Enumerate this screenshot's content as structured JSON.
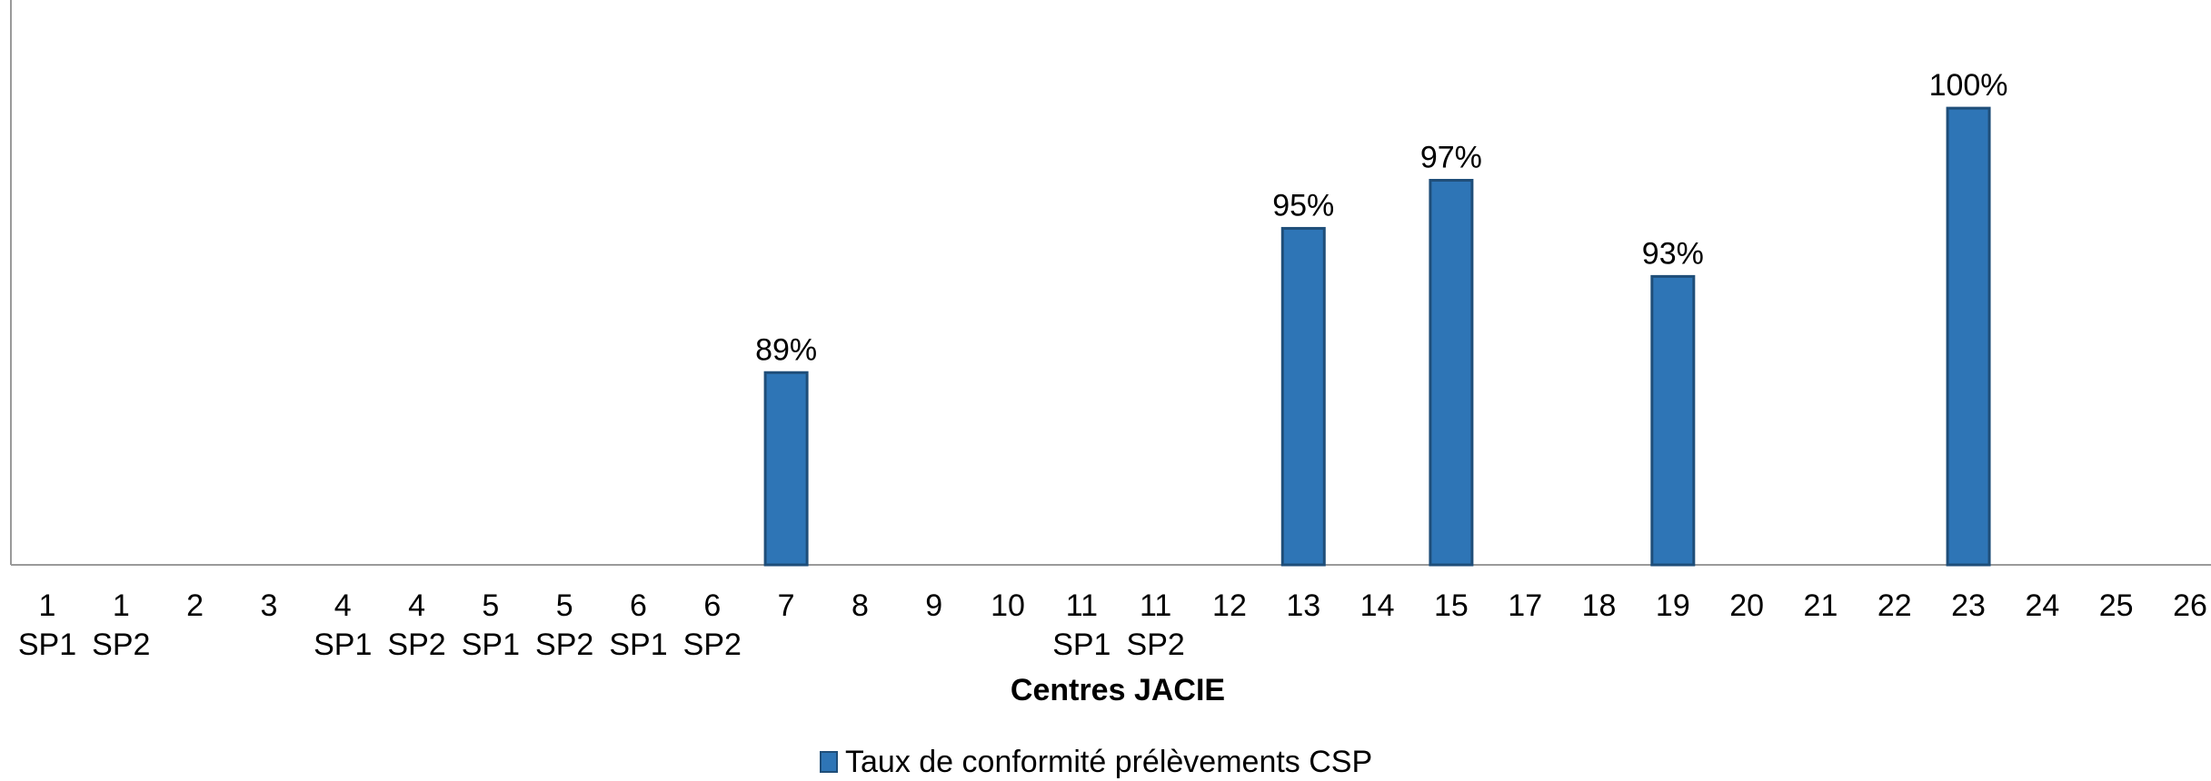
{
  "chart_data": {
    "type": "bar",
    "categories": [
      [
        "1",
        "SP1"
      ],
      [
        "1",
        "SP2"
      ],
      [
        "2",
        ""
      ],
      [
        "3",
        ""
      ],
      [
        "4",
        "SP1"
      ],
      [
        "4",
        "SP2"
      ],
      [
        "5",
        "SP1"
      ],
      [
        "5",
        "SP2"
      ],
      [
        "6",
        "SP1"
      ],
      [
        "6",
        "SP2"
      ],
      [
        "7",
        ""
      ],
      [
        "8",
        ""
      ],
      [
        "9",
        ""
      ],
      [
        "10",
        ""
      ],
      [
        "11",
        "SP1"
      ],
      [
        "11",
        "SP2"
      ],
      [
        "12",
        ""
      ],
      [
        "13",
        ""
      ],
      [
        "14",
        ""
      ],
      [
        "15",
        ""
      ],
      [
        "17",
        ""
      ],
      [
        "18",
        ""
      ],
      [
        "19",
        ""
      ],
      [
        "20",
        ""
      ],
      [
        "21",
        ""
      ],
      [
        "22",
        ""
      ],
      [
        "23",
        ""
      ],
      [
        "24",
        ""
      ],
      [
        "25",
        ""
      ],
      [
        "26",
        ""
      ]
    ],
    "series": [
      {
        "name": "Taux de conformité prélèvements CSP",
        "color": "#2E75B6",
        "values": [
          null,
          null,
          null,
          null,
          null,
          null,
          null,
          null,
          null,
          null,
          89,
          null,
          null,
          null,
          null,
          null,
          null,
          95,
          null,
          97,
          null,
          null,
          93,
          null,
          null,
          null,
          100,
          null,
          null,
          null
        ],
        "labels": [
          "",
          "",
          "",
          "",
          "",
          "",
          "",
          "",
          "",
          "",
          "89%",
          "",
          "",
          "",
          "",
          "",
          "",
          "95%",
          "",
          "97%",
          "",
          "",
          "93%",
          "",
          "",
          "",
          "100%",
          "",
          "",
          ""
        ]
      }
    ],
    "xlabel": "Centres JACIE",
    "ylabel": "",
    "ylim": [
      81,
      104.5
    ],
    "grid": false,
    "legend": "bottom"
  }
}
